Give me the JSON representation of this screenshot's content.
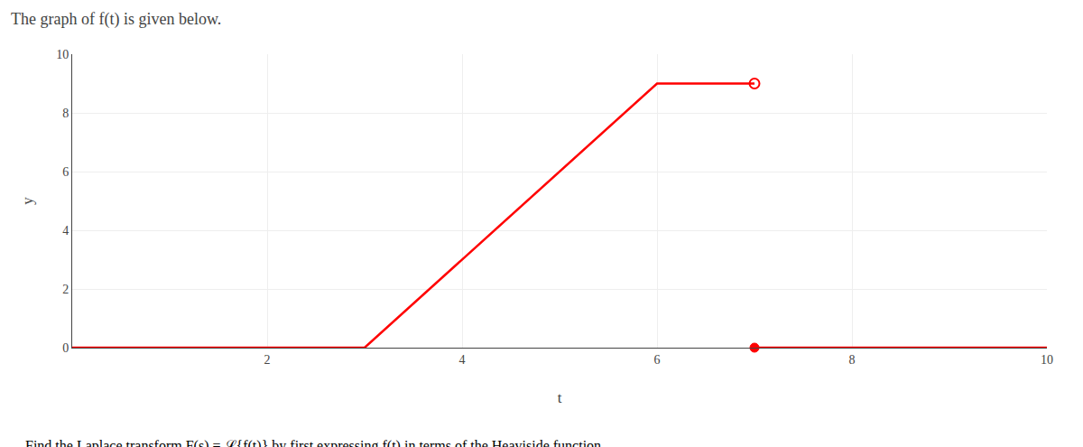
{
  "chart_data": {
    "type": "line",
    "title": "The graph of f(t) is given below.",
    "subtitle": "Find the Laplace transform F(s) = ℒ{f(t)} by first expressing f(t) in terms of the Heaviside function.",
    "x_label": "t",
    "y_label": "y",
    "xlim": [
      0,
      10
    ],
    "ylim": [
      0,
      10
    ],
    "xticks": [
      2,
      4,
      6,
      8,
      10
    ],
    "yticks": [
      0,
      2,
      4,
      6,
      8,
      10
    ],
    "grid": true,
    "series": [
      {
        "type": "line",
        "line_style": "solid",
        "color": "#ff0000",
        "x": [
          0,
          3,
          6,
          7,
          7,
          7,
          10
        ],
        "values": [
          0,
          0,
          9,
          9,
          null,
          0,
          0
        ]
      },
      {
        "type": "scatter",
        "marker": "open_circle",
        "color": "#ff0000",
        "x": [
          7
        ],
        "values": [
          9
        ]
      },
      {
        "type": "scatter",
        "marker": "circle",
        "color": "#ff0000",
        "x": [
          7
        ],
        "values": [
          0
        ]
      }
    ]
  }
}
